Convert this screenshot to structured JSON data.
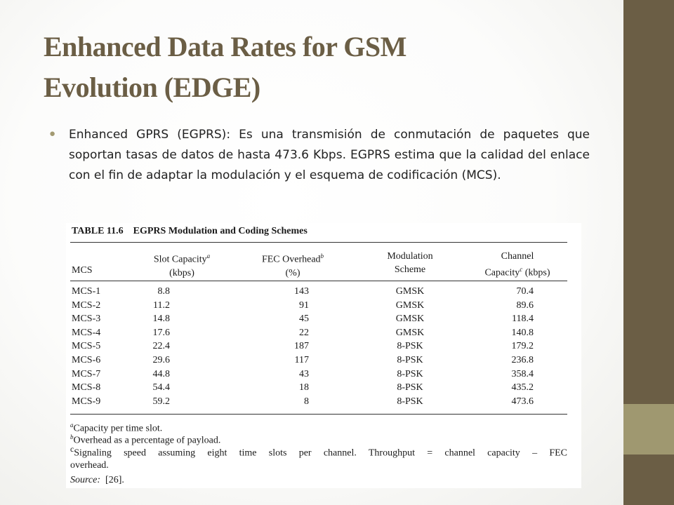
{
  "slide": {
    "title_line1": "Enhanced Data Rates for GSM",
    "title_line2": "Evolution (EDGE)",
    "bullet": "Enhanced GPRS (EGPRS): Es una transmisión de conmutación de  paquetes que soportan tasas de datos de hasta 473.6 Kbps. EGPRS estima que la calidad del enlace con el fin de adaptar la modulación y el esquema de codificación (MCS).",
    "colors": {
      "title": "#6b5e45",
      "sidebar": "#6b5e45",
      "sidebar_accent": "#9f9870",
      "bullet": "#a39a72"
    }
  },
  "table": {
    "caption_label": "TABLE 11.6",
    "caption_title": "EGPRS Modulation and Coding Schemes",
    "headers": {
      "mcs": "MCS",
      "slot_l1": "Slot Capacity",
      "slot_mark": "a",
      "slot_l2": "(kbps)",
      "fec_l1": "FEC Overhead",
      "fec_mark": "b",
      "fec_l2": "(%)",
      "mod_l1": "Modulation",
      "mod_l2": "Scheme",
      "ch_l1": "Channel",
      "ch_l2a": "Capacity",
      "ch_mark": "c",
      "ch_l2b": " (kbps)"
    },
    "rows": [
      {
        "mcs": "MCS-1",
        "slot": "8.8",
        "fec": "143",
        "mod": "GMSK",
        "cap": "70.4"
      },
      {
        "mcs": "MCS-2",
        "slot": "11.2",
        "fec": "91",
        "mod": "GMSK",
        "cap": "89.6"
      },
      {
        "mcs": "MCS-3",
        "slot": "14.8",
        "fec": "45",
        "mod": "GMSK",
        "cap": "118.4"
      },
      {
        "mcs": "MCS-4",
        "slot": "17.6",
        "fec": "22",
        "mod": "GMSK",
        "cap": "140.8"
      },
      {
        "mcs": "MCS-5",
        "slot": "22.4",
        "fec": "187",
        "mod": "8-PSK",
        "cap": "179.2"
      },
      {
        "mcs": "MCS-6",
        "slot": "29.6",
        "fec": "117",
        "mod": "8-PSK",
        "cap": "236.8"
      },
      {
        "mcs": "MCS-7",
        "slot": "44.8",
        "fec": "43",
        "mod": "8-PSK",
        "cap": "358.4"
      },
      {
        "mcs": "MCS-8",
        "slot": "54.4",
        "fec": "18",
        "mod": "8-PSK",
        "cap": "435.2"
      },
      {
        "mcs": "MCS-9",
        "slot": "59.2",
        "fec": "8",
        "mod": "8-PSK",
        "cap": "473.6"
      }
    ],
    "footnotes": {
      "a_mark": "a",
      "a_text": "Capacity per time slot.",
      "b_mark": "b",
      "b_text": "Overhead as a percentage of payload.",
      "c_mark": "c",
      "c_line1": "Signaling speed assuming eight time slots per channel. Throughput = channel capacity – FEC",
      "c_line2": "overhead.",
      "source_label": "Source:",
      "source_ref": "[26]."
    }
  }
}
